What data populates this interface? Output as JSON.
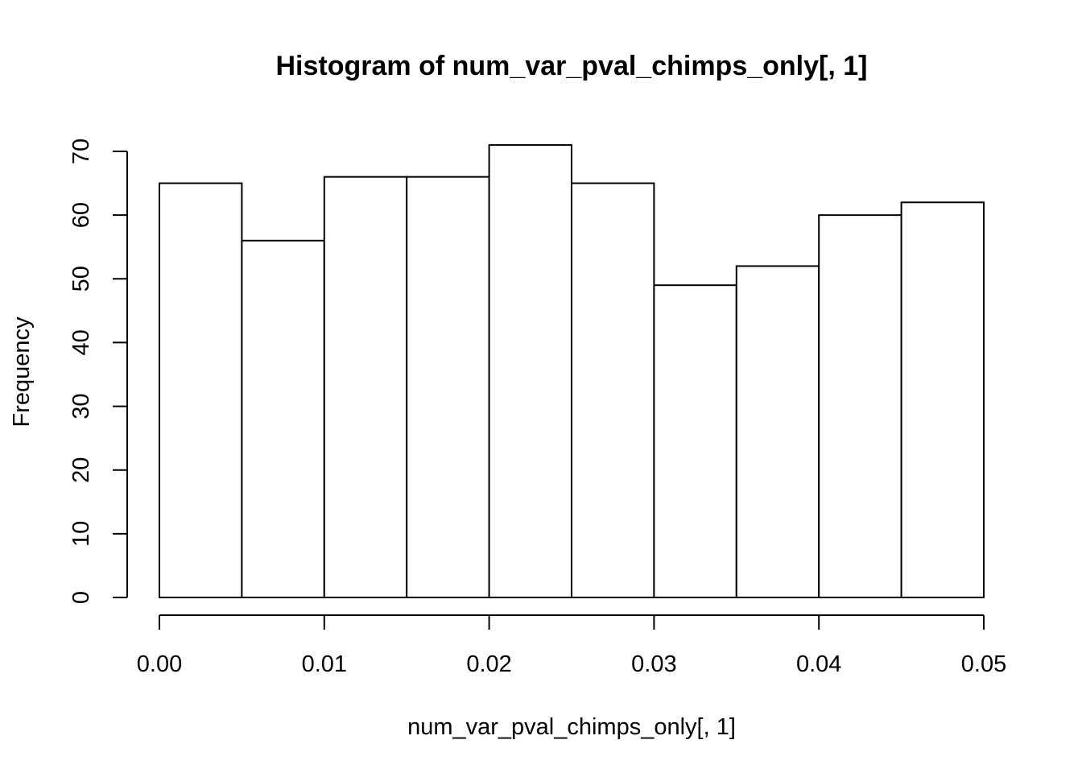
{
  "chart_data": {
    "type": "bar",
    "title": "Histogram of num_var_pval_chimps_only[, 1]",
    "xlabel": "num_var_pval_chimps_only[, 1]",
    "ylabel": "Frequency",
    "bin_edges": [
      0.0,
      0.005,
      0.01,
      0.015,
      0.02,
      0.025,
      0.03,
      0.035,
      0.04,
      0.045,
      0.05
    ],
    "values": [
      65,
      56,
      66,
      66,
      71,
      65,
      49,
      52,
      60,
      62
    ],
    "xlim": [
      0,
      0.05
    ],
    "ylim": [
      0,
      70
    ],
    "x_ticks": [
      0.0,
      0.01,
      0.02,
      0.03,
      0.04,
      0.05
    ],
    "x_tick_labels": [
      "0.00",
      "0.01",
      "0.02",
      "0.03",
      "0.04",
      "0.05"
    ],
    "y_ticks": [
      0,
      10,
      20,
      30,
      40,
      50,
      60,
      70
    ],
    "y_tick_labels": [
      "0",
      "10",
      "20",
      "30",
      "40",
      "50",
      "60",
      "70"
    ],
    "grid": false,
    "legend": "none",
    "colors": {
      "bar_fill": "#ffffff",
      "bar_stroke": "#000000"
    }
  }
}
